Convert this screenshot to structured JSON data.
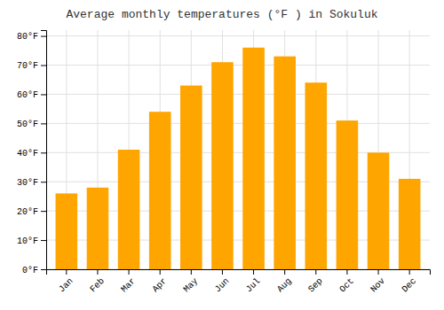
{
  "chart_data": {
    "type": "bar",
    "title": "Average monthly temperatures (°F ) in Sokuluk",
    "categories": [
      "Jan",
      "Feb",
      "Mar",
      "Apr",
      "May",
      "Jun",
      "Jul",
      "Aug",
      "Sep",
      "Oct",
      "Nov",
      "Dec"
    ],
    "values": [
      26,
      28,
      41,
      54,
      63,
      71,
      76,
      73,
      64,
      51,
      40,
      31
    ],
    "color": "#FFA500",
    "ylim": [
      0,
      82
    ],
    "yticks": [
      {
        "value": 0,
        "label": "0°F"
      },
      {
        "value": 10,
        "label": "10°F"
      },
      {
        "value": 20,
        "label": "20°F"
      },
      {
        "value": 30,
        "label": "30°F"
      },
      {
        "value": 40,
        "label": "40°F"
      },
      {
        "value": 50,
        "label": "50°F"
      },
      {
        "value": 60,
        "label": "60°F"
      },
      {
        "value": 70,
        "label": "70°F"
      },
      {
        "value": 80,
        "label": "80°F"
      }
    ],
    "grid": true
  }
}
